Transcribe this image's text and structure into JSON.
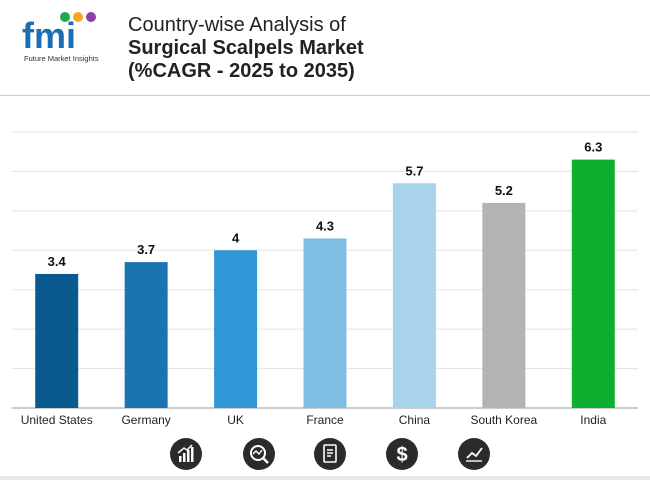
{
  "logo": {
    "letters": "fmi",
    "tagline": "Future Market Insights"
  },
  "title": {
    "line1": "Country-wise Analysis of",
    "line2": "Surgical Scalpels Market",
    "line3": "(%CAGR - 2025 to 2035)"
  },
  "chart_data": {
    "type": "bar",
    "title": "Country-wise Analysis of Surgical Scalpels Market (%CAGR - 2025 to 2035)",
    "categories": [
      "United States",
      "Germany",
      "UK",
      "France",
      "China",
      "South Korea",
      "India"
    ],
    "values": [
      3.4,
      3.7,
      4,
      4.3,
      5.7,
      5.2,
      6.3
    ],
    "value_labels": [
      "3.4",
      "3.7",
      "4",
      "4.3",
      "5.7",
      "5.2",
      "6.3"
    ],
    "colors": [
      "#0a5a8f",
      "#1a74b1",
      "#2f97d6",
      "#7fbde3",
      "#a9d2ec",
      "#b3b3b3",
      "#0eae2f"
    ],
    "xlabel": "",
    "ylabel": "",
    "ylim": [
      0,
      7
    ],
    "grid": true
  },
  "footer": {
    "icons": [
      "growth-chart-icon",
      "analysis-magnifier-icon",
      "report-document-icon",
      "dollar-icon",
      "trend-line-icon"
    ]
  }
}
